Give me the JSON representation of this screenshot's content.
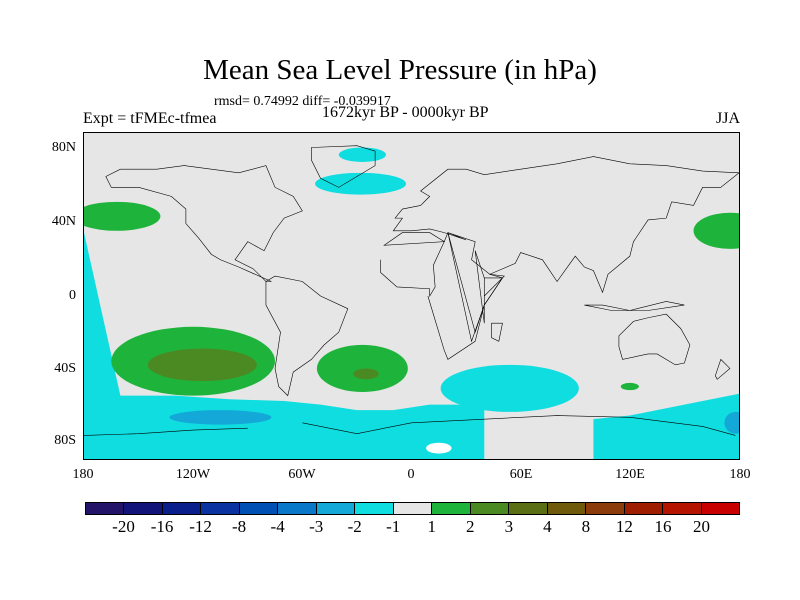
{
  "title": "Mean Sea Level Pressure (in hPa)",
  "stats": "rmsd= 0.74992 diff= -0.039917",
  "left_string": "Expt = tFMEc-tfmea",
  "center_string": "1672kyr BP - 0000kyr BP",
  "right_string": "JJA",
  "lat_labels": [
    "80N",
    "40N",
    "0",
    "40S",
    "80S"
  ],
  "lon_labels": [
    "180",
    "120W",
    "60W",
    "0",
    "60E",
    "120E",
    "180"
  ],
  "colorbar": {
    "labels": [
      "-20",
      "-16",
      "-12",
      "-8",
      "-4",
      "-3",
      "-2",
      "-1",
      "1",
      "2",
      "3",
      "4",
      "8",
      "12",
      "16",
      "20"
    ],
    "colors": [
      "#23146a",
      "#12147a",
      "#0a1e8c",
      "#0a32a0",
      "#0050b4",
      "#0a78c8",
      "#14a8d8",
      "#10dde0",
      "#e6e6e6",
      "#1eb43c",
      "#4b8a23",
      "#5a6e14",
      "#6e5a0a",
      "#8c3c0a",
      "#a01e00",
      "#b41400",
      "#c80000"
    ]
  }
}
